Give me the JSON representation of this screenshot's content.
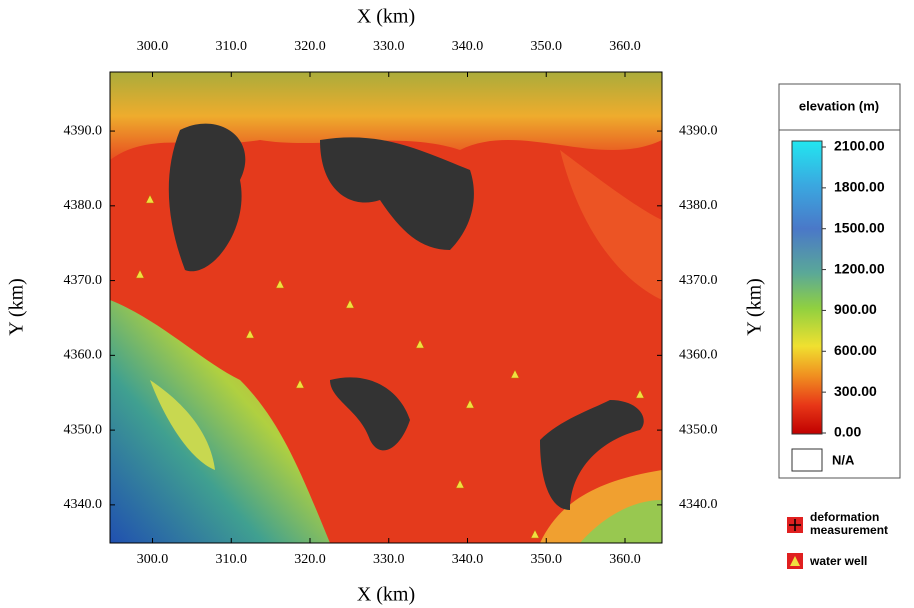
{
  "map": {
    "x_label": "X (km)",
    "y_label": "Y (km)",
    "xlim": [
      294.6,
      364.7
    ],
    "ylim": [
      4334.9,
      4397.9
    ],
    "xticks": [
      {
        "value": 300,
        "label": "300.0"
      },
      {
        "value": 310,
        "label": "310.0"
      },
      {
        "value": 320,
        "label": "320.0"
      },
      {
        "value": 330,
        "label": "330.0"
      },
      {
        "value": 340,
        "label": "340.0"
      },
      {
        "value": 350,
        "label": "350.0"
      },
      {
        "value": 360,
        "label": "360.0"
      }
    ],
    "yticks": [
      {
        "value": 4340,
        "label": "4340.0"
      },
      {
        "value": 4350,
        "label": "4350.0"
      },
      {
        "value": 4360,
        "label": "4360.0"
      },
      {
        "value": 4370,
        "label": "4370.0"
      },
      {
        "value": 4380,
        "label": "4380.0"
      },
      {
        "value": 4390,
        "label": "4390.0"
      }
    ]
  },
  "legend": {
    "title": "elevation (m)",
    "scale_lim": [
      0,
      2100
    ],
    "scale": [
      {
        "value": 2100,
        "label": "2100.00"
      },
      {
        "value": 1800,
        "label": "1800.00"
      },
      {
        "value": 1500,
        "label": "1500.00"
      },
      {
        "value": 1200,
        "label": "1200.00"
      },
      {
        "value": 900,
        "label": "900.00"
      },
      {
        "value": 600,
        "label": "600.00"
      },
      {
        "value": 300,
        "label": "300.00"
      },
      {
        "value": 0,
        "label": "0.00"
      }
    ],
    "na": "N/A",
    "symbols": [
      "deformation measurement",
      "water well"
    ]
  }
}
